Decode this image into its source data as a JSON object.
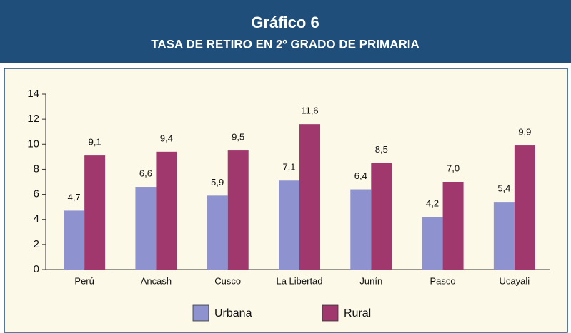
{
  "chart_data": {
    "type": "bar",
    "title": "Gráfico 6",
    "subtitle": "TASA DE RETIRO EN 2º GRADO DE PRIMARIA",
    "categories": [
      "Perú",
      "Ancash",
      "Cusco",
      "La Libertad",
      "Junín",
      "Pasco",
      "Ucayali"
    ],
    "series": [
      {
        "name": "Urbana",
        "color": "#8e93cf",
        "values": [
          4.7,
          6.6,
          5.9,
          7.1,
          6.4,
          4.2,
          5.4
        ],
        "value_labels": [
          "4,7",
          "6,6",
          "5,9",
          "7,1",
          "6,4",
          "4,2",
          "5,4"
        ]
      },
      {
        "name": "Rural",
        "color": "#a0386e",
        "values": [
          9.1,
          9.4,
          9.5,
          11.6,
          8.5,
          7.0,
          9.9
        ],
        "value_labels": [
          "9,1",
          "9,4",
          "9,5",
          "11,6",
          "8,5",
          "7,0",
          "9,9"
        ]
      }
    ],
    "ylim": [
      0,
      14
    ],
    "yticks": [
      0,
      2,
      4,
      6,
      8,
      10,
      12,
      14
    ],
    "grid": false,
    "legend": "bottom"
  }
}
